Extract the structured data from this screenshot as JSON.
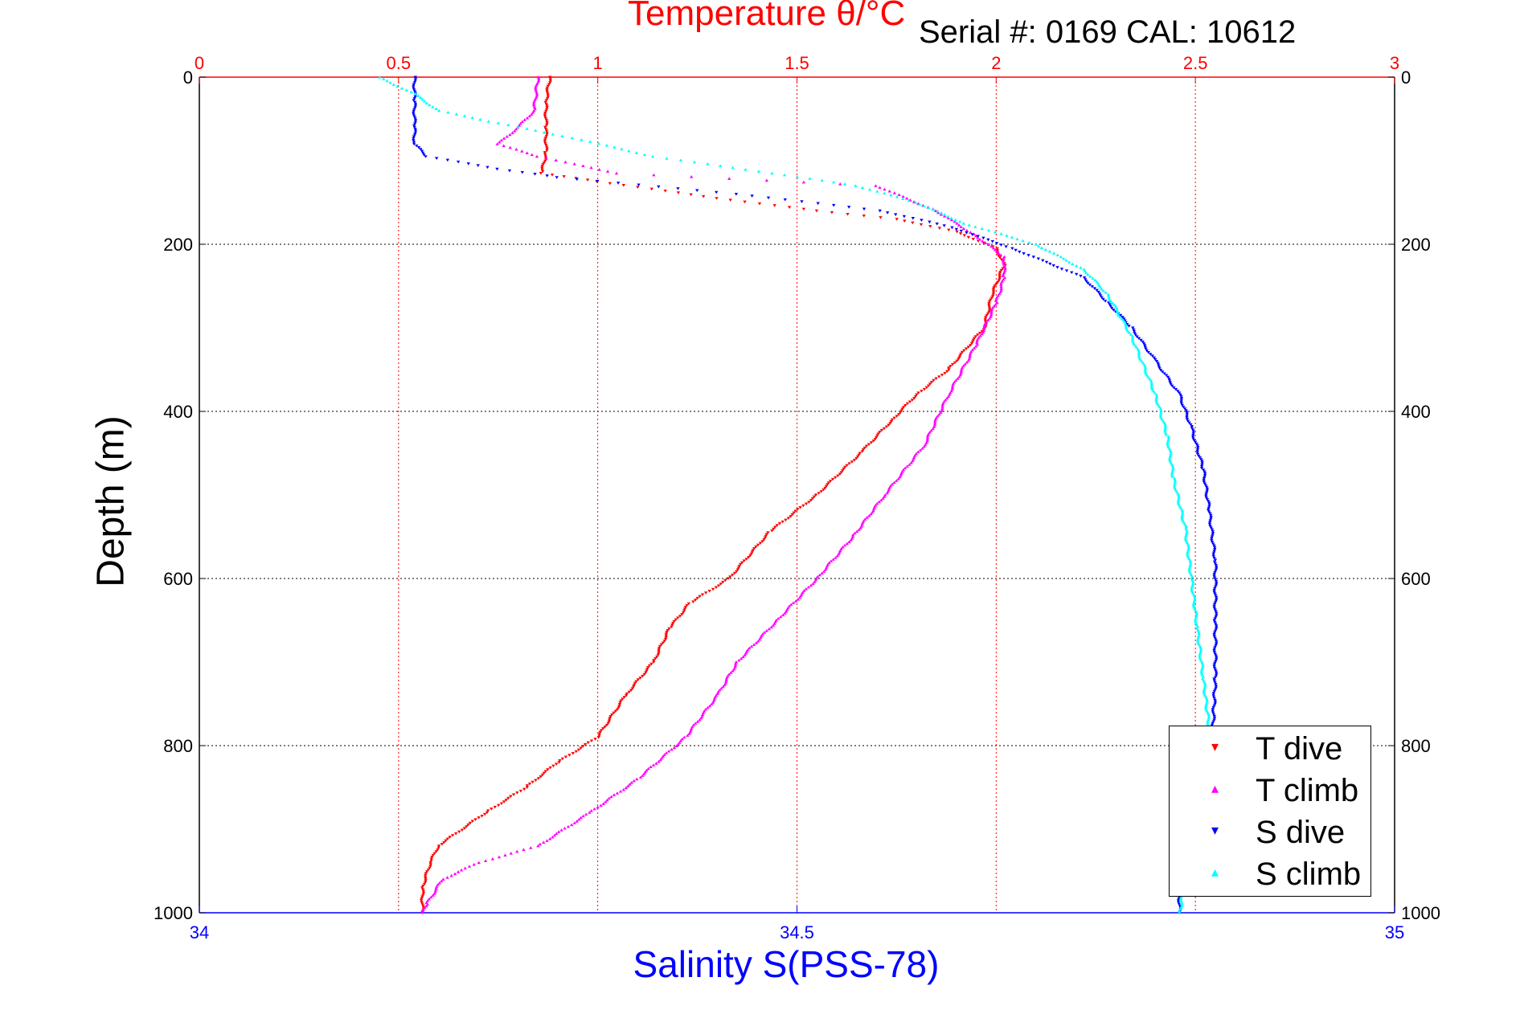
{
  "header": {
    "title": "Temperature θ/°C",
    "serial": "Serial #: 0169 CAL: 10612"
  },
  "axes": {
    "ylabel": "Depth (m)",
    "xlabel": "Salinity S(PSS-78)"
  },
  "legend": {
    "items": [
      {
        "label": "T dive",
        "color": "#ff0000",
        "marker": "▾"
      },
      {
        "label": "T climb",
        "color": "#ff00ff",
        "marker": "▴"
      },
      {
        "label": "S dive",
        "color": "#0000ff",
        "marker": "▾"
      },
      {
        "label": "S climb",
        "color": "#00ffff",
        "marker": "▴"
      }
    ]
  },
  "chart_data": {
    "type": "scatter",
    "title": "Temperature θ/°C",
    "xlabel": "Salinity S(PSS-78)",
    "ylabel": "Depth (m)",
    "y_reversed": true,
    "ylim": [
      0,
      1000
    ],
    "y_ticks": [
      0,
      200,
      400,
      600,
      800,
      1000
    ],
    "top_axis": {
      "label": "Temperature θ/°C",
      "lim": [
        0,
        3
      ],
      "ticks": [
        0,
        0.5,
        1,
        1.5,
        2,
        2.5,
        3
      ],
      "color": "#ff0000"
    },
    "bottom_axis": {
      "label": "Salinity S(PSS-78)",
      "lim": [
        34,
        35
      ],
      "ticks": [
        34,
        34.5,
        35
      ],
      "color": "#0000ff"
    },
    "grid": true,
    "legend_position": "bottom-right",
    "series": [
      {
        "name": "T dive",
        "axis": "top",
        "color": "#ff0000",
        "marker": "triangle-down",
        "points": [
          [
            0.88,
            0
          ],
          [
            0.87,
            30
          ],
          [
            0.87,
            60
          ],
          [
            0.87,
            90
          ],
          [
            0.86,
            115
          ],
          [
            1.0,
            125
          ],
          [
            1.3,
            145
          ],
          [
            1.55,
            160
          ],
          [
            1.75,
            170
          ],
          [
            1.9,
            185
          ],
          [
            2.0,
            205
          ],
          [
            2.02,
            225
          ],
          [
            1.99,
            260
          ],
          [
            1.97,
            300
          ],
          [
            1.88,
            350
          ],
          [
            1.8,
            380
          ],
          [
            1.74,
            410
          ],
          [
            1.66,
            450
          ],
          [
            1.55,
            500
          ],
          [
            1.43,
            545
          ],
          [
            1.33,
            600
          ],
          [
            1.23,
            630
          ],
          [
            1.18,
            660
          ],
          [
            1.14,
            700
          ],
          [
            1.07,
            740
          ],
          [
            1.0,
            790
          ],
          [
            0.9,
            820
          ],
          [
            0.82,
            850
          ],
          [
            0.72,
            880
          ],
          [
            0.6,
            920
          ],
          [
            0.58,
            940
          ],
          [
            0.56,
            970
          ],
          [
            0.56,
            1000
          ]
        ]
      },
      {
        "name": "T climb",
        "axis": "top",
        "color": "#ff00ff",
        "marker": "triangle-up",
        "points": [
          [
            0.85,
            0
          ],
          [
            0.84,
            40
          ],
          [
            0.8,
            60
          ],
          [
            0.75,
            80
          ],
          [
            0.85,
            95
          ],
          [
            1.05,
            115
          ],
          [
            1.7,
            130
          ],
          [
            1.85,
            160
          ],
          [
            1.95,
            190
          ],
          [
            2.02,
            215
          ],
          [
            2.02,
            240
          ],
          [
            2.0,
            270
          ],
          [
            1.95,
            320
          ],
          [
            1.88,
            380
          ],
          [
            1.82,
            440
          ],
          [
            1.72,
            500
          ],
          [
            1.64,
            550
          ],
          [
            1.55,
            600
          ],
          [
            1.45,
            650
          ],
          [
            1.35,
            700
          ],
          [
            1.3,
            740
          ],
          [
            1.22,
            790
          ],
          [
            1.1,
            840
          ],
          [
            0.98,
            880
          ],
          [
            0.85,
            920
          ],
          [
            0.7,
            940
          ],
          [
            0.61,
            960
          ],
          [
            0.57,
            990
          ],
          [
            0.56,
            1000
          ]
        ]
      },
      {
        "name": "S dive",
        "axis": "bottom",
        "color": "#0000ff",
        "marker": "triangle-down",
        "points": [
          [
            34.18,
            0
          ],
          [
            34.18,
            30
          ],
          [
            34.18,
            60
          ],
          [
            34.18,
            80
          ],
          [
            34.19,
            95
          ],
          [
            34.25,
            110
          ],
          [
            34.3,
            120
          ],
          [
            34.45,
            140
          ],
          [
            34.57,
            160
          ],
          [
            34.63,
            180
          ],
          [
            34.68,
            205
          ],
          [
            34.74,
            240
          ],
          [
            34.76,
            270
          ],
          [
            34.78,
            300
          ],
          [
            34.8,
            340
          ],
          [
            34.82,
            380
          ],
          [
            34.83,
            420
          ],
          [
            34.84,
            470
          ],
          [
            34.845,
            520
          ],
          [
            34.85,
            580
          ],
          [
            34.85,
            650
          ],
          [
            34.85,
            720
          ],
          [
            34.848,
            780
          ],
          [
            34.84,
            830
          ],
          [
            34.835,
            870
          ],
          [
            34.825,
            900
          ],
          [
            34.82,
            930
          ],
          [
            34.82,
            960
          ],
          [
            34.82,
            1000
          ]
        ]
      },
      {
        "name": "S climb",
        "axis": "bottom",
        "color": "#00ffff",
        "marker": "triangle-up",
        "points": [
          [
            34.15,
            0
          ],
          [
            34.18,
            20
          ],
          [
            34.2,
            40
          ],
          [
            34.25,
            55
          ],
          [
            34.32,
            75
          ],
          [
            34.38,
            95
          ],
          [
            34.48,
            115
          ],
          [
            34.55,
            130
          ],
          [
            34.6,
            150
          ],
          [
            34.64,
            175
          ],
          [
            34.7,
            200
          ],
          [
            34.74,
            230
          ],
          [
            34.76,
            260
          ],
          [
            34.78,
            310
          ],
          [
            34.8,
            380
          ],
          [
            34.81,
            430
          ],
          [
            34.815,
            480
          ],
          [
            34.825,
            540
          ],
          [
            34.83,
            600
          ],
          [
            34.835,
            660
          ],
          [
            34.84,
            720
          ],
          [
            34.845,
            780
          ],
          [
            34.84,
            840
          ],
          [
            34.835,
            890
          ],
          [
            34.83,
            930
          ],
          [
            34.825,
            960
          ],
          [
            34.82,
            1000
          ]
        ]
      }
    ]
  }
}
